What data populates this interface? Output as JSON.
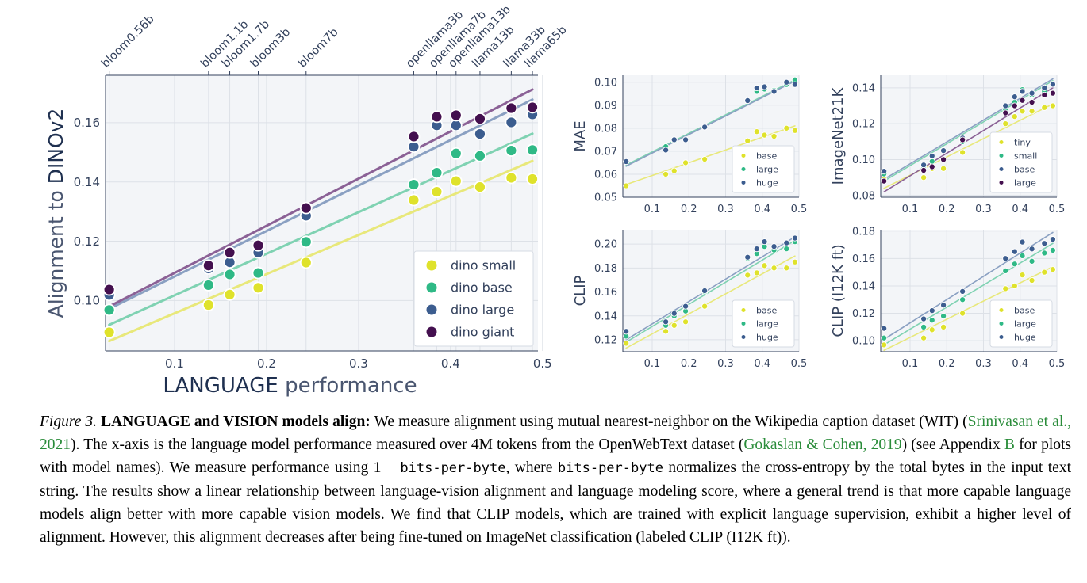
{
  "chart_data": [
    {
      "id": "dinov2",
      "type": "scatter",
      "xlabel_strong": "LANGUAGE",
      "xlabel_rest": " performance",
      "ylabel_plain": "Alignment to ",
      "ylabel_strong": "DINOv2",
      "xlim": [
        0.025,
        0.495
      ],
      "ylim": [
        0.083,
        0.176
      ],
      "xticks": [
        0.1,
        0.2,
        0.3,
        0.4,
        0.5
      ],
      "xtick_labels": [
        "0.1",
        "0.2",
        "0.3",
        "0.4",
        "0.5"
      ],
      "yticks": [
        0.1,
        0.12,
        0.14,
        0.16
      ],
      "ytick_labels": [
        "0.10",
        "0.12",
        "0.14",
        "0.16"
      ],
      "top_axis": {
        "x": [
          0.029,
          0.137,
          0.16,
          0.191,
          0.243,
          0.36,
          0.385,
          0.406,
          0.432,
          0.466,
          0.489
        ],
        "labels": [
          "bloom0.56b",
          "bloom1.1b",
          "bloom1.7b",
          "bloom3b",
          "bloom7b",
          "openllama3b",
          "openllama7b",
          "openllama13b",
          "llama13b",
          "llama33b",
          "llama65b"
        ]
      },
      "grid": true,
      "legend_position": "bottom-right",
      "x": [
        0.029,
        0.137,
        0.16,
        0.191,
        0.243,
        0.36,
        0.385,
        0.406,
        0.432,
        0.466,
        0.489
      ],
      "series": [
        {
          "name": "dino small",
          "color": "#dfe22b",
          "line_color": "#e8e87a",
          "values": [
            0.0893,
            0.0985,
            0.102,
            0.1043,
            0.1128,
            0.1339,
            0.1367,
            0.1403,
            0.1383,
            0.1414,
            0.141
          ]
        },
        {
          "name": "dino base",
          "color": "#2fb986",
          "line_color": "#7fd2b2",
          "values": [
            0.0968,
            0.1052,
            0.1088,
            0.1093,
            0.1198,
            0.1391,
            0.1431,
            0.1496,
            0.1488,
            0.1506,
            0.1508
          ]
        },
        {
          "name": "dino large",
          "color": "#3c5d8f",
          "line_color": "#8aa0c2",
          "values": [
            0.1019,
            0.1108,
            0.1129,
            0.1162,
            0.1286,
            0.1519,
            0.1591,
            0.1591,
            0.1562,
            0.1601,
            0.1628
          ]
        },
        {
          "name": "dino giant",
          "color": "#44104f",
          "line_color": "#8b6196",
          "values": [
            0.1037,
            0.1118,
            0.1162,
            0.1186,
            0.1312,
            0.1553,
            0.162,
            0.1625,
            0.1613,
            0.1649,
            0.1652
          ]
        }
      ],
      "trendlines": [
        {
          "series": "dino small",
          "from": [
            0.029,
            0.0863
          ],
          "to": [
            0.489,
            0.1471
          ]
        },
        {
          "series": "dino base",
          "from": [
            0.029,
            0.0918
          ],
          "to": [
            0.489,
            0.1563
          ]
        },
        {
          "series": "dino large",
          "from": [
            0.029,
            0.0972
          ],
          "to": [
            0.489,
            0.1678
          ]
        },
        {
          "series": "dino giant",
          "from": [
            0.029,
            0.098
          ],
          "to": [
            0.489,
            0.1712
          ]
        }
      ]
    },
    {
      "id": "mae",
      "type": "scatter",
      "ylabel": "MAE",
      "xlim": [
        0.02,
        0.5
      ],
      "ylim": [
        0.05,
        0.103
      ],
      "xticks": [
        0.1,
        0.2,
        0.3,
        0.4,
        0.5
      ],
      "xtick_labels": [
        "0.1",
        "0.2",
        "0.3",
        "0.4",
        "0.5"
      ],
      "yticks": [
        0.05,
        0.06,
        0.07,
        0.08,
        0.09,
        0.1
      ],
      "ytick_labels": [
        "0.05",
        "0.06",
        "0.07",
        "0.08",
        "0.09",
        "0.10"
      ],
      "grid": true,
      "legend_position": "bottom-right",
      "x": [
        0.029,
        0.137,
        0.16,
        0.191,
        0.243,
        0.36,
        0.385,
        0.406,
        0.432,
        0.466,
        0.489
      ],
      "series": [
        {
          "name": "base",
          "color": "#dfe22b",
          "line_color": "#e8e87a",
          "values": [
            0.055,
            0.06,
            0.0615,
            0.065,
            0.0665,
            0.0745,
            0.0785,
            0.077,
            0.0765,
            0.08,
            0.079
          ]
        },
        {
          "name": "large",
          "color": "#2fb986",
          "line_color": "#7fd2b2",
          "values": [
            0.0655,
            0.072,
            0.0745,
            0.075,
            0.0805,
            0.092,
            0.096,
            0.097,
            0.0965,
            0.099,
            0.101
          ]
        },
        {
          "name": "huge",
          "color": "#3c5d8f",
          "line_color": "#8aa0c2",
          "values": [
            0.0655,
            0.0705,
            0.075,
            0.075,
            0.0805,
            0.092,
            0.0975,
            0.098,
            0.096,
            0.1,
            0.099
          ]
        }
      ],
      "trendlines": [
        {
          "series": "base",
          "from": [
            0.029,
            0.0555
          ],
          "to": [
            0.489,
            0.081
          ]
        },
        {
          "series": "large",
          "from": [
            0.029,
            0.064
          ],
          "to": [
            0.489,
            0.101
          ]
        },
        {
          "series": "huge",
          "from": [
            0.029,
            0.0635
          ],
          "to": [
            0.489,
            0.1005
          ]
        }
      ]
    },
    {
      "id": "imagenet21k",
      "type": "scatter",
      "ylabel": "ImageNet21K",
      "xlim": [
        0.02,
        0.5
      ],
      "ylim": [
        0.079,
        0.147
      ],
      "xticks": [
        0.1,
        0.2,
        0.3,
        0.4,
        0.5
      ],
      "xtick_labels": [
        "0.1",
        "0.2",
        "0.3",
        "0.4",
        "0.5"
      ],
      "yticks": [
        0.08,
        0.1,
        0.12,
        0.14
      ],
      "ytick_labels": [
        "0.08",
        "0.10",
        "0.12",
        "0.14"
      ],
      "grid": true,
      "legend_position": "bottom-right",
      "x": [
        0.029,
        0.137,
        0.16,
        0.191,
        0.243,
        0.36,
        0.385,
        0.406,
        0.432,
        0.466,
        0.489
      ],
      "series": [
        {
          "name": "tiny",
          "color": "#dfe22b",
          "line_color": "#e8e87a",
          "values": [
            0.089,
            0.09,
            0.095,
            0.095,
            0.104,
            0.12,
            0.124,
            0.127,
            0.127,
            0.129,
            0.13
          ]
        },
        {
          "name": "small",
          "color": "#2fb986",
          "line_color": "#7fd2b2",
          "values": [
            0.092,
            0.096,
            0.099,
            0.1,
            0.11,
            0.128,
            0.132,
            0.139,
            0.136,
            0.138,
            0.142
          ]
        },
        {
          "name": "base",
          "color": "#3c5d8f",
          "line_color": "#8aa0c2",
          "values": [
            0.0935,
            0.097,
            0.102,
            0.105,
            0.112,
            0.13,
            0.135,
            0.138,
            0.137,
            0.14,
            0.142
          ]
        },
        {
          "name": "large",
          "color": "#44104f",
          "line_color": "#8b6196",
          "values": [
            0.088,
            0.094,
            0.096,
            0.1,
            0.111,
            0.126,
            0.13,
            0.133,
            0.132,
            0.136,
            0.137
          ]
        }
      ],
      "trendlines": [
        {
          "series": "tiny",
          "from": [
            0.029,
            0.084
          ],
          "to": [
            0.489,
            0.131
          ]
        },
        {
          "series": "small",
          "from": [
            0.029,
            0.088
          ],
          "to": [
            0.489,
            0.144
          ]
        },
        {
          "series": "base",
          "from": [
            0.029,
            0.089
          ],
          "to": [
            0.489,
            0.145
          ]
        },
        {
          "series": "large",
          "from": [
            0.029,
            0.082
          ],
          "to": [
            0.489,
            0.14
          ]
        }
      ]
    },
    {
      "id": "clip",
      "type": "scatter",
      "ylabel": "CLIP",
      "xlim": [
        0.02,
        0.5
      ],
      "ylim": [
        0.11,
        0.212
      ],
      "xticks": [
        0.1,
        0.2,
        0.3,
        0.4,
        0.5
      ],
      "xtick_labels": [
        "0.1",
        "0.2",
        "0.3",
        "0.4",
        "0.5"
      ],
      "yticks": [
        0.12,
        0.14,
        0.16,
        0.18,
        0.2
      ],
      "ytick_labels": [
        "0.12",
        "0.14",
        "0.16",
        "0.18",
        "0.20"
      ],
      "grid": true,
      "legend_position": "bottom-right",
      "x": [
        0.029,
        0.137,
        0.16,
        0.191,
        0.243,
        0.36,
        0.385,
        0.406,
        0.432,
        0.466,
        0.489
      ],
      "series": [
        {
          "name": "base",
          "color": "#dfe22b",
          "line_color": "#e8e87a",
          "values": [
            0.117,
            0.127,
            0.132,
            0.135,
            0.148,
            0.174,
            0.176,
            0.182,
            0.18,
            0.18,
            0.185
          ]
        },
        {
          "name": "large",
          "color": "#2fb986",
          "line_color": "#7fd2b2",
          "values": [
            0.123,
            0.132,
            0.14,
            0.144,
            0.16,
            0.188,
            0.192,
            0.198,
            0.195,
            0.196,
            0.202
          ]
        },
        {
          "name": "huge",
          "color": "#3c5d8f",
          "line_color": "#8aa0c2",
          "values": [
            0.127,
            0.135,
            0.142,
            0.148,
            0.161,
            0.189,
            0.196,
            0.202,
            0.198,
            0.201,
            0.205
          ]
        }
      ],
      "trendlines": [
        {
          "series": "base",
          "from": [
            0.029,
            0.113
          ],
          "to": [
            0.489,
            0.19
          ]
        },
        {
          "series": "large",
          "from": [
            0.029,
            0.118
          ],
          "to": [
            0.489,
            0.203
          ]
        },
        {
          "series": "huge",
          "from": [
            0.029,
            0.12
          ],
          "to": [
            0.489,
            0.206
          ]
        }
      ]
    },
    {
      "id": "clip_i12k",
      "type": "scatter",
      "ylabel": "CLIP (I12K ft)",
      "xlim": [
        0.02,
        0.5
      ],
      "ylim": [
        0.092,
        0.181
      ],
      "xticks": [
        0.1,
        0.2,
        0.3,
        0.4,
        0.5
      ],
      "xtick_labels": [
        "0.1",
        "0.2",
        "0.3",
        "0.4",
        "0.5"
      ],
      "yticks": [
        0.1,
        0.12,
        0.14,
        0.16,
        0.18
      ],
      "ytick_labels": [
        "0.10",
        "0.12",
        "0.14",
        "0.16",
        "0.18"
      ],
      "grid": true,
      "legend_position": "bottom-right",
      "x": [
        0.029,
        0.137,
        0.16,
        0.191,
        0.243,
        0.36,
        0.385,
        0.406,
        0.432,
        0.466,
        0.489
      ],
      "series": [
        {
          "name": "base",
          "color": "#dfe22b",
          "line_color": "#e8e87a",
          "values": [
            0.097,
            0.102,
            0.108,
            0.11,
            0.12,
            0.138,
            0.14,
            0.148,
            0.144,
            0.15,
            0.152
          ]
        },
        {
          "name": "large",
          "color": "#2fb986",
          "line_color": "#7fd2b2",
          "values": [
            0.102,
            0.11,
            0.115,
            0.118,
            0.13,
            0.151,
            0.156,
            0.162,
            0.158,
            0.164,
            0.166
          ]
        },
        {
          "name": "huge",
          "color": "#3c5d8f",
          "line_color": "#8aa0c2",
          "values": [
            0.109,
            0.116,
            0.122,
            0.126,
            0.136,
            0.16,
            0.165,
            0.172,
            0.167,
            0.171,
            0.174
          ]
        }
      ],
      "trendlines": [
        {
          "series": "base",
          "from": [
            0.029,
            0.093
          ],
          "to": [
            0.489,
            0.154
          ]
        },
        {
          "series": "large",
          "from": [
            0.029,
            0.097
          ],
          "to": [
            0.489,
            0.171
          ]
        },
        {
          "series": "huge",
          "from": [
            0.029,
            0.101
          ],
          "to": [
            0.489,
            0.179
          ]
        }
      ]
    }
  ],
  "caption": {
    "figure_label": "Figure 3.",
    "bold_title": "LANGUAGE and VISION models align:",
    "t1": " We measure alignment using mutual nearest-neighbor on the Wikipedia caption dataset (WIT) (",
    "cite1": "Srinivasan et al.,",
    "t2": " ",
    "cite1_year": "2021",
    "t3": "). The x-axis is the language model performance measured over 4M tokens from the OpenWebText dataset (",
    "cite2": "Gokaslan & Cohen,",
    "t4": " ",
    "cite2_year": "2019",
    "t5": ") (see Appendix ",
    "appendix_ref": "B",
    "t6": " for plots with model names). We measure performance using ",
    "formula_prefix": "1 − ",
    "formula_mono": "bits-per-byte",
    "t7": ", where ",
    "mono2": "bits-per-byte",
    "t8": " normalizes the cross-entropy by the total bytes in the input text string. The results show a linear relationship between language-vision alignment and language modeling score, where a general trend is that more capable language models align better with more capable vision models. We find that CLIP models, which are trained with explicit language supervision, exhibit a higher level of alignment. However, this alignment decreases after being fine-tuned on ImageNet classification (labeled CLIP (I12K ft))."
  }
}
